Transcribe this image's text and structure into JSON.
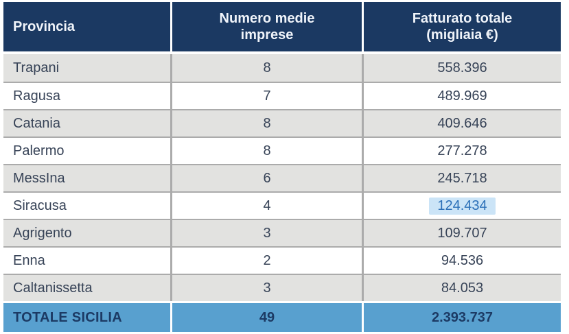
{
  "table": {
    "columns": [
      {
        "label": "Provincia"
      },
      {
        "label": "Numero medie\nimprese"
      },
      {
        "label": "Fatturato totale\n(migliaia €)"
      }
    ],
    "rows": [
      {
        "provincia": "Trapani",
        "numero": "8",
        "fatturato": "558.396"
      },
      {
        "provincia": "Ragusa",
        "numero": "7",
        "fatturato": "489.969"
      },
      {
        "provincia": "Catania",
        "numero": "8",
        "fatturato": "409.646"
      },
      {
        "provincia": "Palermo",
        "numero": "8",
        "fatturato": "277.278"
      },
      {
        "provincia": "MessIna",
        "numero": "6",
        "fatturato": "245.718"
      },
      {
        "provincia": "Siracusa",
        "numero": "4",
        "fatturato": "124.434",
        "highlighted": true
      },
      {
        "provincia": "Agrigento",
        "numero": "3",
        "fatturato": "109.707"
      },
      {
        "provincia": "Enna",
        "numero": "2",
        "fatturato": "94.536"
      },
      {
        "provincia": "Caltanissetta",
        "numero": "3",
        "fatturato": "84.053"
      }
    ],
    "total": {
      "label": "TOTALE SICILIA",
      "numero": "49",
      "fatturato": "2.393.737"
    }
  },
  "chart_data": {
    "type": "table",
    "title": "",
    "categories": [
      "Trapani",
      "Ragusa",
      "Catania",
      "Palermo",
      "MessIna",
      "Siracusa",
      "Agrigento",
      "Enna",
      "Caltanissetta"
    ],
    "series": [
      {
        "name": "Numero medie imprese",
        "values": [
          8,
          7,
          8,
          8,
          6,
          4,
          3,
          2,
          3
        ]
      },
      {
        "name": "Fatturato totale (migliaia €)",
        "values": [
          558396,
          489969,
          409646,
          277278,
          245718,
          124434,
          109707,
          94536,
          84053
        ]
      }
    ],
    "totals": {
      "label": "TOTALE SICILIA",
      "numero_medie_imprese": 49,
      "fatturato_totale": 2393737
    }
  },
  "colors": {
    "header_bg": "#1B3962",
    "header_text": "#F0F4FA",
    "stripe_gray": "#E2E2E0",
    "stripe_white": "#FFFFFF",
    "separator": "#ABABAB",
    "body_text": "#374357",
    "total_bg": "#58A0CF",
    "total_text": "#1C3A64",
    "highlight_bg": "#CBE4F7",
    "highlight_text": "#2C70B8"
  }
}
